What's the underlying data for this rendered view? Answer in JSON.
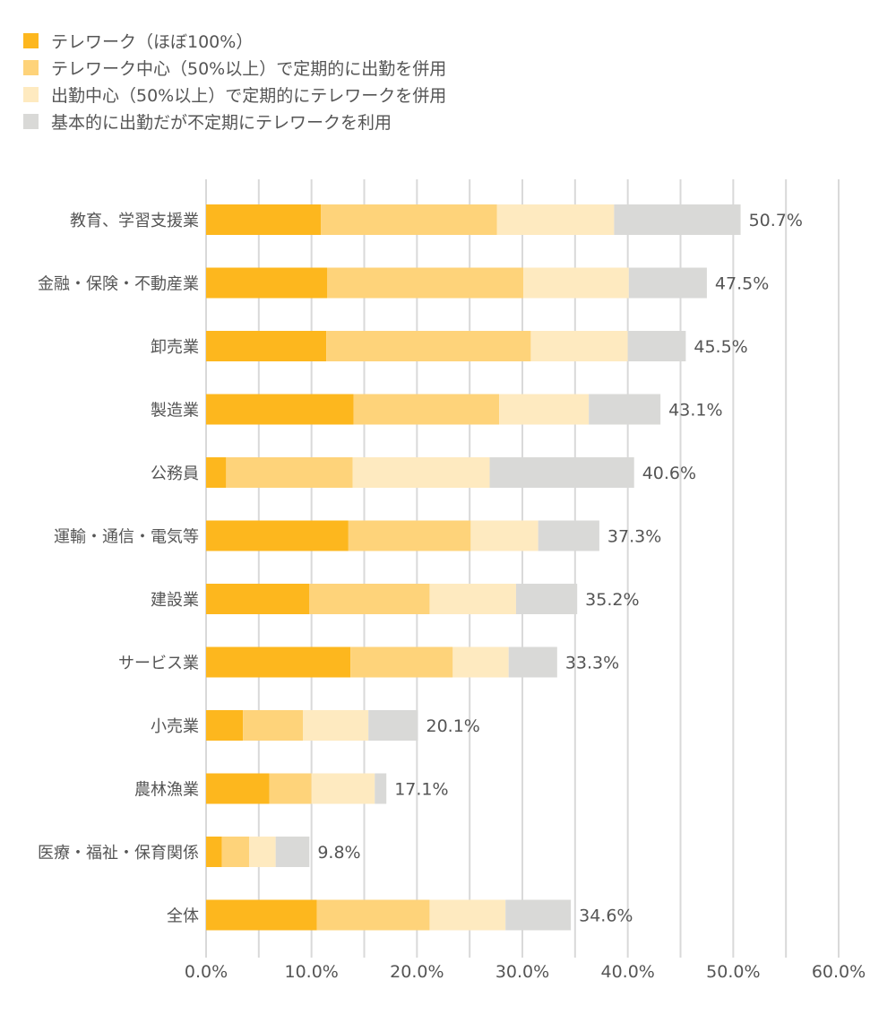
{
  "chart_data": {
    "type": "bar",
    "orientation": "horizontal",
    "stacked": true,
    "title": "",
    "xlabel": "",
    "ylabel": "",
    "xlim": [
      0,
      60
    ],
    "x_ticks": [
      "0.0%",
      "10.0%",
      "20.0%",
      "30.0%",
      "40.0%",
      "50.0%",
      "60.0%"
    ],
    "gridlines_every": 5,
    "grid": true,
    "legend_position": "top-left",
    "categories": [
      "教育、学習支援業",
      "金融・保険・不動産業",
      "卸売業",
      "製造業",
      "公務員",
      "運輸・通信・電気等",
      "建設業",
      "サービス業",
      "小売業",
      "農林漁業",
      "医療・福祉・保育関係",
      "全体"
    ],
    "series": [
      {
        "name": "テレワーク（ほぼ100%）",
        "color": "#FDB71E",
        "values": [
          10.9,
          11.5,
          11.4,
          14.0,
          1.9,
          13.5,
          9.8,
          13.7,
          3.5,
          6.0,
          1.5,
          10.5
        ]
      },
      {
        "name": "テレワーク中心（50%以上）で定期的に出勤を併用",
        "color": "#FED37A",
        "values": [
          16.7,
          18.6,
          19.4,
          13.8,
          12.0,
          11.6,
          11.4,
          9.7,
          5.7,
          4.0,
          2.6,
          10.7
        ]
      },
      {
        "name": "出勤中心（50%以上）で定期的にテレワークを併用",
        "color": "#FEEAC0",
        "values": [
          11.1,
          10.0,
          9.2,
          8.5,
          13.0,
          6.4,
          8.2,
          5.3,
          6.2,
          6.0,
          2.5,
          7.2
        ]
      },
      {
        "name": "基本的に出勤だが不定期にテレワークを利用",
        "color": "#D9D9D7",
        "values": [
          12.0,
          7.4,
          5.5,
          6.8,
          13.7,
          5.8,
          5.8,
          4.6,
          4.7,
          1.1,
          3.2,
          6.2
        ]
      }
    ],
    "totals": [
      "50.7%",
      "47.5%",
      "45.5%",
      "43.1%",
      "40.6%",
      "37.3%",
      "35.2%",
      "33.3%",
      "20.1%",
      "17.1%",
      "9.8%",
      "34.6%"
    ],
    "total_values": [
      50.7,
      47.5,
      45.5,
      43.1,
      40.6,
      37.3,
      35.2,
      33.3,
      20.1,
      17.1,
      9.8,
      34.6
    ]
  },
  "colors": {
    "grid": "#D9D9D9",
    "text": "#555555"
  }
}
